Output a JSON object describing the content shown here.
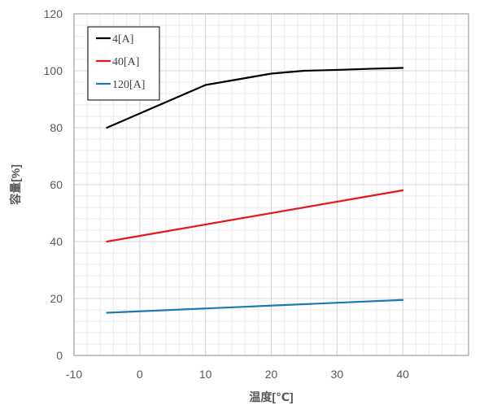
{
  "chart_data": {
    "type": "line",
    "title": "",
    "xlabel": "温度[℃]",
    "ylabel": "容量[%]",
    "xlim": [
      -10,
      50
    ],
    "ylim": [
      0,
      120
    ],
    "x_ticks": [
      -10,
      0,
      10,
      20,
      30,
      40
    ],
    "y_ticks": [
      0,
      20,
      40,
      60,
      80,
      100,
      120
    ],
    "x_minor_step": 2,
    "y_minor_step": 4,
    "grid": true,
    "legend_position": "top-left",
    "series": [
      {
        "name": "4[A]",
        "color": "#000000",
        "x": [
          -5,
          0,
          5,
          10,
          15,
          20,
          25,
          30,
          35,
          40
        ],
        "y": [
          80,
          85,
          90,
          95,
          97,
          99,
          100,
          100.3,
          100.7,
          101
        ]
      },
      {
        "name": "40[A]",
        "color": "#e31a1c",
        "x": [
          -5,
          40
        ],
        "y": [
          40,
          58
        ]
      },
      {
        "name": "120[A]",
        "color": "#1f78b4",
        "x": [
          -5,
          40
        ],
        "y": [
          15,
          19.5
        ]
      }
    ]
  }
}
